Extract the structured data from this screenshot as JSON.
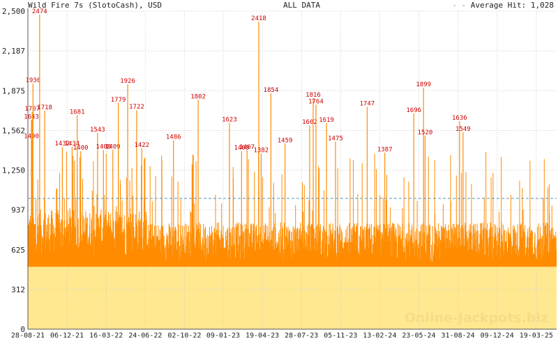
{
  "header": {
    "title": "Wild Fire 7s (SlotoCash), USD",
    "range": "ALL DATA",
    "average_label": "Average Hit: 1,028"
  },
  "watermark": "Online-Jackpots.biz",
  "chart_data": {
    "type": "area",
    "title": "Wild Fire 7s (SlotoCash), USD",
    "xlabel": "",
    "ylabel": "",
    "ylim": [
      0,
      2500
    ],
    "yticks": [
      0,
      312,
      625,
      937,
      1250,
      1562,
      1875,
      2187,
      2500
    ],
    "ytick_labels": [
      "0",
      "312",
      "625",
      "937",
      "1,250",
      "1,562",
      "1,875",
      "2,187",
      "2,500"
    ],
    "xlim": [
      "2021-08-28",
      "2025-05-10"
    ],
    "xticks": [
      "2021-08-28",
      "2021-12-06",
      "2022-03-16",
      "2022-06-24",
      "2022-10-02",
      "2023-01-09",
      "2023-04-19",
      "2023-07-28",
      "2023-11-05",
      "2024-02-13",
      "2024-05-23",
      "2024-08-31",
      "2024-12-09",
      "2025-03-19"
    ],
    "xtick_labels": [
      "28-08-21",
      "06-12-21",
      "16-03-22",
      "24-06-22",
      "02-10-22",
      "09-01-23",
      "19-04-23",
      "28-07-23",
      "05-11-23",
      "13-02-24",
      "23-05-24",
      "31-08-24",
      "09-12-24",
      "19-03-25"
    ],
    "base_level": 490,
    "average": 1028,
    "grid": true,
    "colors": {
      "series": "#ff8c00",
      "fill": "#ffe88f",
      "grid": "#cccccc",
      "average": "#4f97bd",
      "label": "#cc0000",
      "axis": "#555555"
    },
    "labeled_peaks": [
      {
        "x": "2021-09-06",
        "y": 1490,
        "label": "1490"
      },
      {
        "x": "2021-09-06",
        "y": 1643,
        "label": "1643"
      },
      {
        "x": "2021-09-08",
        "y": 1707,
        "label": "1707"
      },
      {
        "x": "2021-09-10",
        "y": 1930,
        "label": "1930"
      },
      {
        "x": "2021-09-27",
        "y": 2474,
        "label": "2474"
      },
      {
        "x": "2021-10-10",
        "y": 1718,
        "label": "1718"
      },
      {
        "x": "2021-11-24",
        "y": 1432,
        "label": "1432"
      },
      {
        "x": "2021-12-19",
        "y": 1434,
        "label": "1434"
      },
      {
        "x": "2022-01-01",
        "y": 1681,
        "label": "1681"
      },
      {
        "x": "2022-01-10",
        "y": 1400,
        "label": "1400"
      },
      {
        "x": "2022-02-22",
        "y": 1543,
        "label": "1543"
      },
      {
        "x": "2022-03-09",
        "y": 1408,
        "label": "1408"
      },
      {
        "x": "2022-04-02",
        "y": 1409,
        "label": "1409"
      },
      {
        "x": "2022-04-16",
        "y": 1779,
        "label": "1779"
      },
      {
        "x": "2022-05-10",
        "y": 1926,
        "label": "1926"
      },
      {
        "x": "2022-06-02",
        "y": 1722,
        "label": "1722"
      },
      {
        "x": "2022-06-15",
        "y": 1422,
        "label": "1422"
      },
      {
        "x": "2022-09-04",
        "y": 1486,
        "label": "1486"
      },
      {
        "x": "2022-11-06",
        "y": 1802,
        "label": "1802"
      },
      {
        "x": "2023-01-25",
        "y": 1623,
        "label": "1623"
      },
      {
        "x": "2023-02-25",
        "y": 1400,
        "label": "1400"
      },
      {
        "x": "2023-03-11",
        "y": 1407,
        "label": "1407"
      },
      {
        "x": "2023-04-10",
        "y": 2418,
        "label": "2418"
      },
      {
        "x": "2023-04-16",
        "y": 1382,
        "label": "1382"
      },
      {
        "x": "2023-05-11",
        "y": 1854,
        "label": "1854"
      },
      {
        "x": "2023-06-16",
        "y": 1459,
        "label": "1459"
      },
      {
        "x": "2023-08-18",
        "y": 1602,
        "label": "1602"
      },
      {
        "x": "2023-08-27",
        "y": 1816,
        "label": "1816"
      },
      {
        "x": "2023-09-03",
        "y": 1764,
        "label": "1764"
      },
      {
        "x": "2023-09-30",
        "y": 1619,
        "label": "1619"
      },
      {
        "x": "2023-10-23",
        "y": 1475,
        "label": "1475"
      },
      {
        "x": "2024-01-12",
        "y": 1747,
        "label": "1747"
      },
      {
        "x": "2024-02-26",
        "y": 1387,
        "label": "1387"
      },
      {
        "x": "2024-05-10",
        "y": 1696,
        "label": "1696"
      },
      {
        "x": "2024-06-04",
        "y": 1899,
        "label": "1899"
      },
      {
        "x": "2024-06-08",
        "y": 1520,
        "label": "1520"
      },
      {
        "x": "2024-09-04",
        "y": 1636,
        "label": "1636"
      },
      {
        "x": "2024-09-13",
        "y": 1549,
        "label": "1549"
      }
    ]
  }
}
